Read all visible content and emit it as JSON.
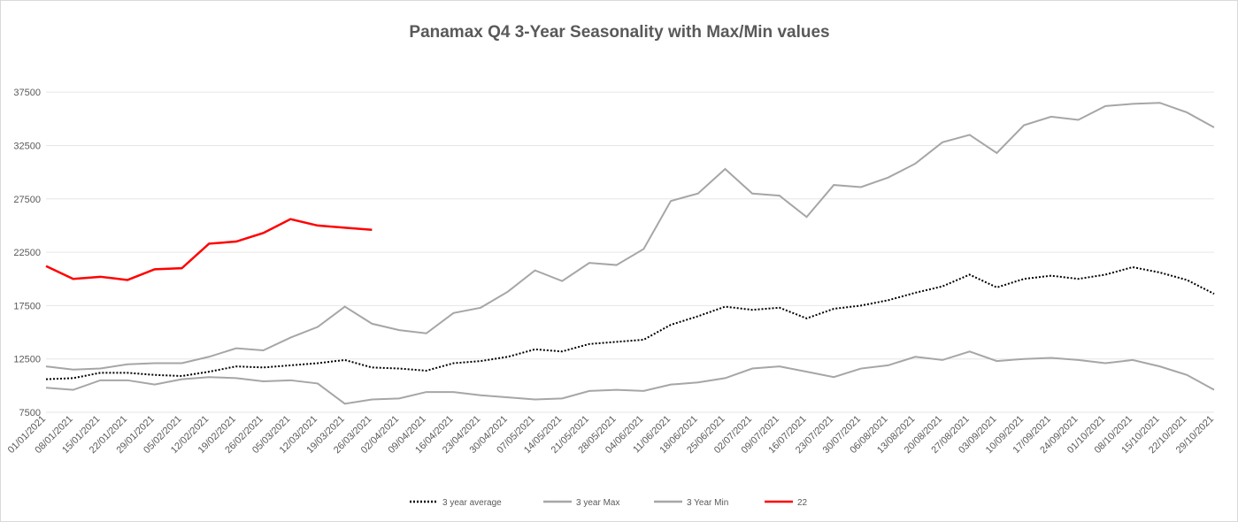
{
  "chart_data": {
    "type": "line",
    "title": "Panamax Q4 3-Year Seasonality with Max/Min values",
    "categories": [
      "01/01/2021",
      "08/01/2021",
      "15/01/2021",
      "22/01/2021",
      "29/01/2021",
      "05/02/2021",
      "12/02/2021",
      "19/02/2021",
      "26/02/2021",
      "05/03/2021",
      "12/03/2021",
      "19/03/2021",
      "26/03/2021",
      "02/04/2021",
      "09/04/2021",
      "16/04/2021",
      "23/04/2021",
      "30/04/2021",
      "07/05/2021",
      "14/05/2021",
      "21/05/2021",
      "28/05/2021",
      "04/06/2021",
      "11/06/2021",
      "18/06/2021",
      "25/06/2021",
      "02/07/2021",
      "09/07/2021",
      "16/07/2021",
      "23/07/2021",
      "30/07/2021",
      "06/08/2021",
      "13/08/2021",
      "20/08/2021",
      "27/08/2021",
      "03/09/2021",
      "10/09/2021",
      "17/09/2021",
      "24/09/2021",
      "01/10/2021",
      "08/10/2021",
      "15/10/2021",
      "22/10/2021",
      "29/10/2021"
    ],
    "series": [
      {
        "name": "3 year average",
        "color": "#000000",
        "dash": "dotted",
        "values": [
          10600,
          10700,
          11200,
          11200,
          11000,
          10900,
          11300,
          11800,
          11700,
          11900,
          12100,
          12400,
          11700,
          11600,
          11400,
          12100,
          12300,
          12700,
          13400,
          13200,
          13900,
          14100,
          14300,
          15700,
          16500,
          17400,
          17100,
          17300,
          16300,
          17200,
          17500,
          18000,
          18700,
          19300,
          20400,
          19200,
          20000,
          20300,
          20000,
          20400,
          21100,
          20600,
          19900,
          18600
        ]
      },
      {
        "name": "3 year Max",
        "color": "#a6a6a6",
        "values": [
          11800,
          11500,
          11600,
          12000,
          12100,
          12100,
          12700,
          13500,
          13300,
          14500,
          15500,
          17400,
          15800,
          15200,
          14900,
          16800,
          17300,
          18800,
          20800,
          19800,
          21500,
          21300,
          22800,
          27300,
          28000,
          30300,
          28000,
          27800,
          25800,
          28800,
          28600,
          29500,
          30800,
          32800,
          33500,
          31800,
          34400,
          35200,
          34900,
          36200,
          36400,
          36500,
          35600,
          34200
        ]
      },
      {
        "name": "3 Year Min",
        "color": "#a6a6a6",
        "values": [
          9800,
          9600,
          10500,
          10500,
          10100,
          10600,
          10800,
          10700,
          10400,
          10500,
          10200,
          8300,
          8700,
          8800,
          9400,
          9400,
          9100,
          8900,
          8700,
          8800,
          9500,
          9600,
          9500,
          10100,
          10300,
          10700,
          11600,
          11800,
          11300,
          10800,
          11600,
          11900,
          12700,
          12400,
          13200,
          12300,
          12500,
          12600,
          12400,
          12100,
          12400,
          11800,
          11000,
          9600
        ]
      },
      {
        "name": "22",
        "color": "#ff0000",
        "values": [
          21200,
          20000,
          20200,
          19900,
          20900,
          21000,
          23300,
          23500,
          24300,
          25600,
          25000,
          24800,
          24600,
          null,
          null,
          null,
          null,
          null,
          null,
          null,
          null,
          null,
          null,
          null,
          null,
          null,
          null,
          null,
          null,
          null,
          null,
          null,
          null,
          null,
          null,
          null,
          null,
          null,
          null,
          null,
          null,
          null,
          null,
          null
        ]
      }
    ],
    "ylim": [
      7500,
      40000
    ],
    "yticks": [
      7500,
      12500,
      17500,
      22500,
      27500,
      32500,
      37500
    ],
    "grid": true,
    "legend": "bottom"
  }
}
